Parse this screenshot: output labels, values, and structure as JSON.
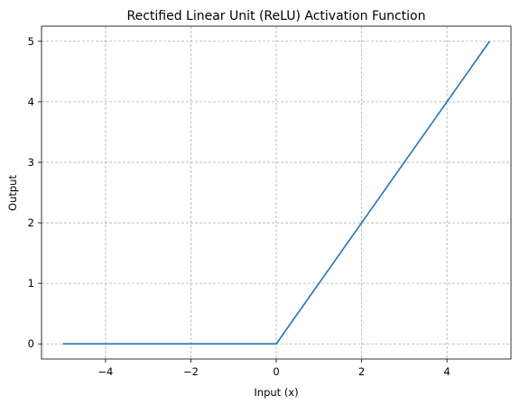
{
  "chart_data": {
    "type": "line",
    "title": "Rectified Linear Unit (ReLU) Activation Function",
    "xlabel": "Input (x)",
    "ylabel": "Output",
    "xlim": [
      -5.5,
      5.5
    ],
    "ylim": [
      -0.25,
      5.25
    ],
    "xticks": [
      -4,
      -2,
      0,
      2,
      4
    ],
    "yticks": [
      0,
      1,
      2,
      3,
      4,
      5
    ],
    "xtick_labels": [
      "−4",
      "−2",
      "0",
      "2",
      "4"
    ],
    "ytick_labels": [
      "0",
      "1",
      "2",
      "3",
      "4",
      "5"
    ],
    "grid": true,
    "grid_style": "dashed",
    "series": [
      {
        "color": "#1f77b4",
        "x": [
          -5,
          0,
          5
        ],
        "y": [
          0,
          0,
          5
        ]
      }
    ]
  }
}
